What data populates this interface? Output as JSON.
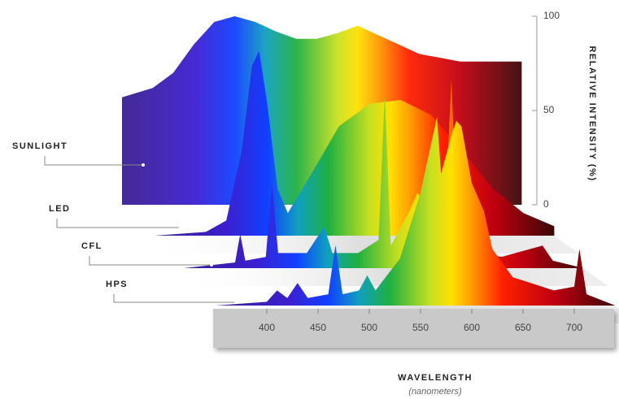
{
  "chart_data": {
    "type": "layered-area",
    "y_axis_label": "RELATIVE INTENSITY (%)",
    "x_axis_label": "WAVELENGTH",
    "x_axis_sublabel": "(nanometers)",
    "xlim": [
      350,
      740
    ],
    "xticks": [
      400,
      450,
      500,
      550,
      600,
      650,
      700
    ],
    "ylim": [
      0,
      100
    ],
    "yticks": [
      0,
      50,
      100
    ],
    "series": [
      {
        "name": "SUNLIGHT",
        "x": [
          350,
          380,
          400,
          420,
          440,
          460,
          480,
          500,
          520,
          540,
          560,
          580,
          600,
          620,
          640,
          660,
          680,
          700,
          740
        ],
        "values": [
          57,
          62,
          70,
          85,
          97,
          100,
          97,
          92,
          88,
          88,
          91,
          95,
          90,
          85,
          80,
          78,
          76,
          76,
          76
        ]
      },
      {
        "name": "LED",
        "x": [
          350,
          400,
          420,
          435,
          445,
          452,
          460,
          470,
          480,
          500,
          530,
          560,
          590,
          620,
          650,
          680,
          710,
          740
        ],
        "values": [
          0,
          2,
          8,
          45,
          90,
          98,
          70,
          25,
          12,
          30,
          58,
          70,
          72,
          64,
          45,
          25,
          12,
          5
        ]
      },
      {
        "name": "CFL",
        "x": [
          350,
          400,
          405,
          410,
          430,
          436,
          442,
          470,
          487,
          495,
          520,
          540,
          546,
          552,
          570,
          578,
          586,
          595,
          605,
          611,
          618,
          640,
          660,
          700,
          710,
          740
        ],
        "values": [
          0,
          3,
          18,
          4,
          6,
          45,
          8,
          8,
          22,
          8,
          8,
          15,
          92,
          12,
          30,
          40,
          32,
          20,
          30,
          100,
          12,
          8,
          6,
          12,
          4,
          0
        ]
      },
      {
        "name": "HPS",
        "x": [
          350,
          400,
          410,
          420,
          430,
          440,
          460,
          467,
          474,
          490,
          498,
          506,
          530,
          550,
          560,
          566,
          570,
          580,
          585,
          590,
          600,
          612,
          620,
          640,
          680,
          700,
          705,
          712,
          740
        ],
        "values": [
          0,
          2,
          8,
          4,
          12,
          4,
          6,
          32,
          6,
          8,
          16,
          8,
          25,
          60,
          85,
          100,
          70,
          90,
          98,
          95,
          65,
          50,
          30,
          15,
          8,
          10,
          30,
          6,
          0
        ]
      }
    ]
  }
}
